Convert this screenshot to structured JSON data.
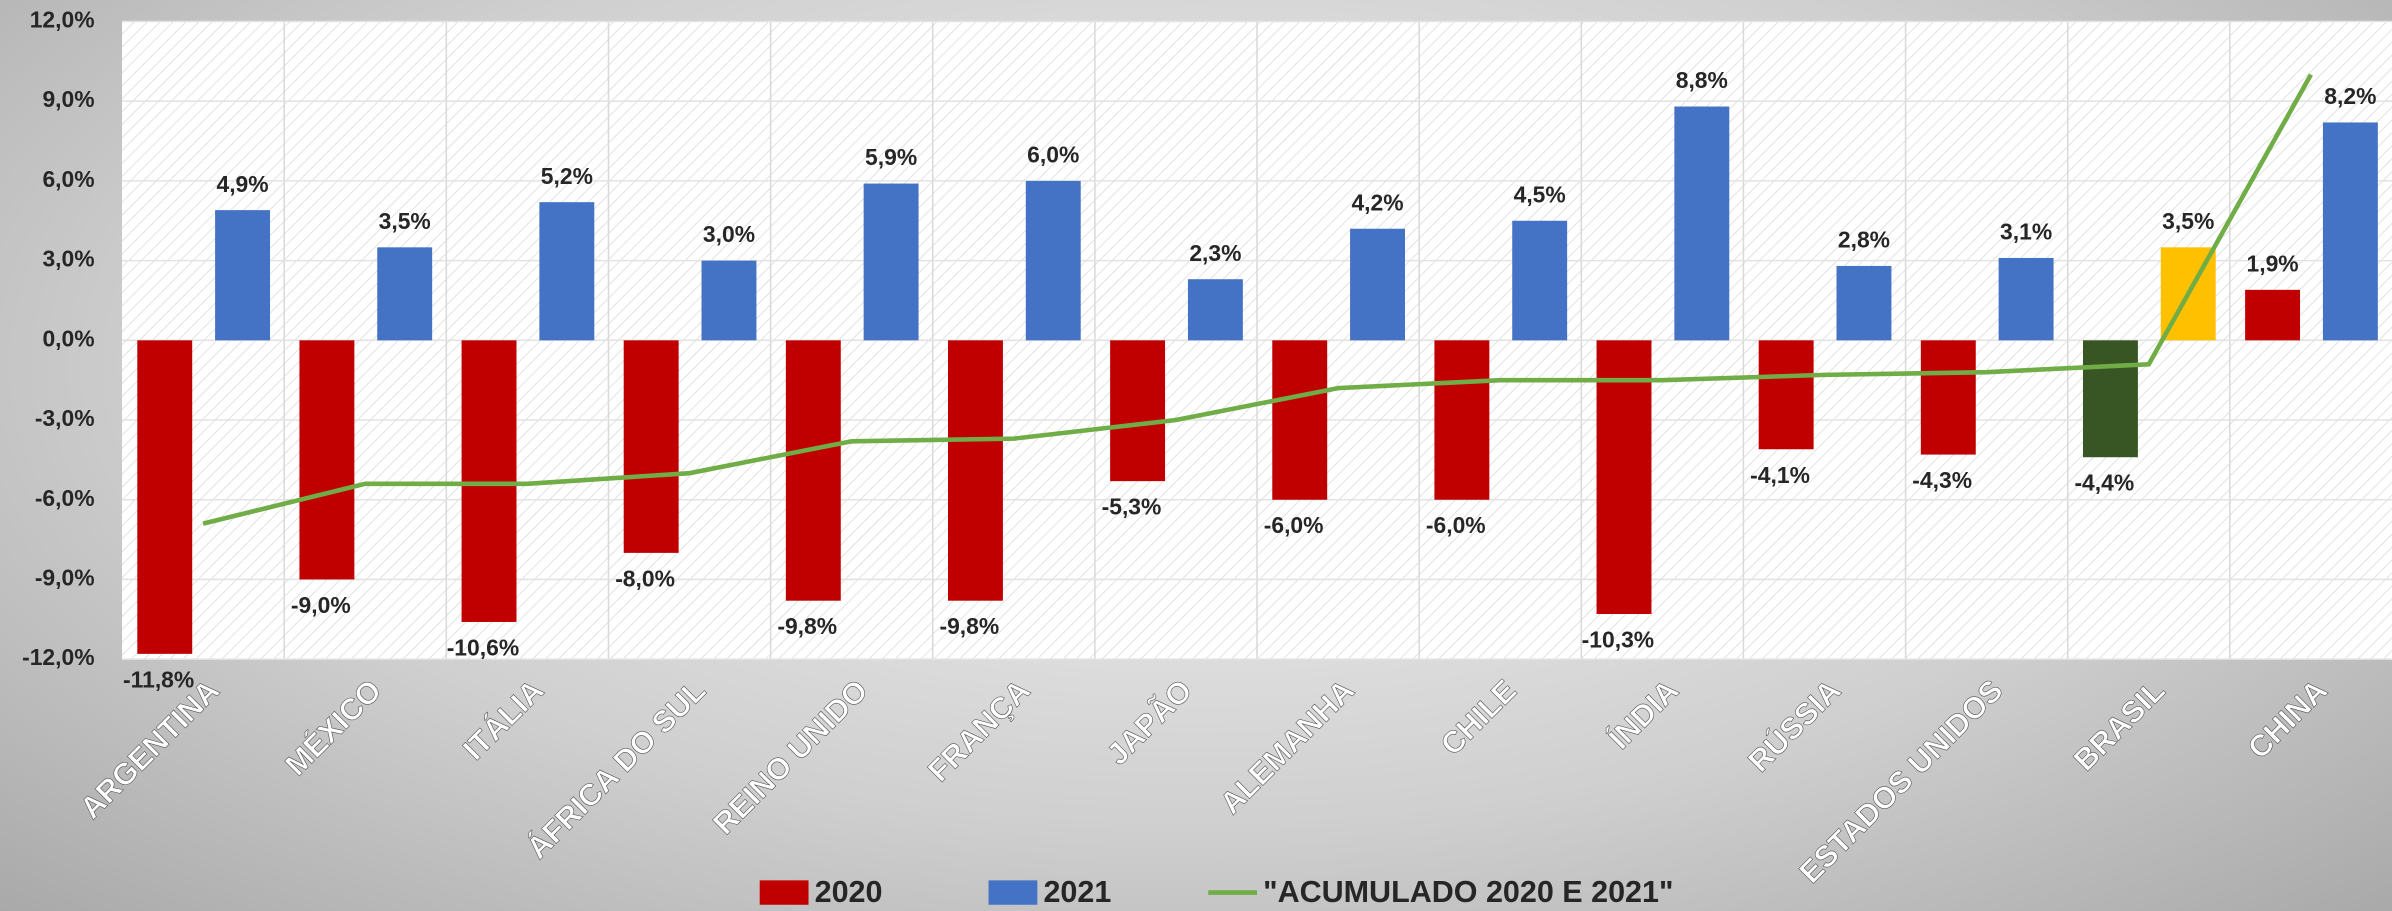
{
  "chart_data": {
    "type": "bar",
    "categories": [
      "ARGENTINA",
      "MÉXICO",
      "ITÁLIA",
      "ÁFRICA DO SUL",
      "REINO UNIDO",
      "FRANÇA",
      "JAPÃO",
      "ALEMANHA",
      "CHILE",
      "ÍNDIA",
      "RÚSSIA",
      "ESTADOS UNIDOS",
      "BRASIL",
      "CHINA"
    ],
    "series": [
      {
        "name": "2020",
        "color": "#c00000",
        "point_colors": [
          "#c00000",
          "#c00000",
          "#c00000",
          "#c00000",
          "#c00000",
          "#c00000",
          "#c00000",
          "#c00000",
          "#c00000",
          "#c00000",
          "#c00000",
          "#c00000",
          "#375623",
          "#c00000"
        ],
        "values": [
          -11.8,
          -9.0,
          -10.6,
          -8.0,
          -9.8,
          -9.8,
          -5.3,
          -6.0,
          -6.0,
          -10.3,
          -4.1,
          -4.3,
          -4.4,
          1.9
        ],
        "value_labels": [
          "-11,8%",
          "-9,0%",
          "-10,6%",
          "-8,0%",
          "-9,8%",
          "-9,8%",
          "-5,3%",
          "-6,0%",
          "-6,0%",
          "-10,3%",
          "-4,1%",
          "-4,3%",
          "-4,4%",
          "1,9%"
        ]
      },
      {
        "name": "2021",
        "color": "#4472c4",
        "point_colors": [
          "#4472c4",
          "#4472c4",
          "#4472c4",
          "#4472c4",
          "#4472c4",
          "#4472c4",
          "#4472c4",
          "#4472c4",
          "#4472c4",
          "#4472c4",
          "#4472c4",
          "#4472c4",
          "#ffc000",
          "#4472c4"
        ],
        "values": [
          4.9,
          3.5,
          5.2,
          3.0,
          5.9,
          6.0,
          2.3,
          4.2,
          4.5,
          8.8,
          2.8,
          3.1,
          3.5,
          8.2
        ],
        "value_labels": [
          "4,9%",
          "3,5%",
          "5,2%",
          "3,0%",
          "5,9%",
          "6,0%",
          "2,3%",
          "4,2%",
          "4,5%",
          "8,8%",
          "2,8%",
          "3,1%",
          "3,5%",
          "8,2%"
        ]
      },
      {
        "name": "\"ACUMULADO 2020 E 2021\"",
        "color": "#70ad47",
        "type": "line",
        "values": [
          -6.9,
          -5.4,
          -5.4,
          -5.0,
          -3.8,
          -3.7,
          -3.0,
          -1.8,
          -1.5,
          -1.5,
          -1.3,
          -1.2,
          -0.9,
          10.0
        ]
      }
    ],
    "ylim": [
      -12,
      12
    ],
    "yticks": [
      {
        "value": -12,
        "label": "-12,0%"
      },
      {
        "value": -9,
        "label": "-9,0%"
      },
      {
        "value": -6,
        "label": "-6,0%"
      },
      {
        "value": -3,
        "label": "-3,0%"
      },
      {
        "value": 0,
        "label": "0,0%"
      },
      {
        "value": 3,
        "label": "3,0%"
      },
      {
        "value": 6,
        "label": "6,0%"
      },
      {
        "value": 9,
        "label": "9,0%"
      },
      {
        "value": 12,
        "label": "12,0%"
      }
    ],
    "grid": true,
    "legend": "bottom"
  }
}
